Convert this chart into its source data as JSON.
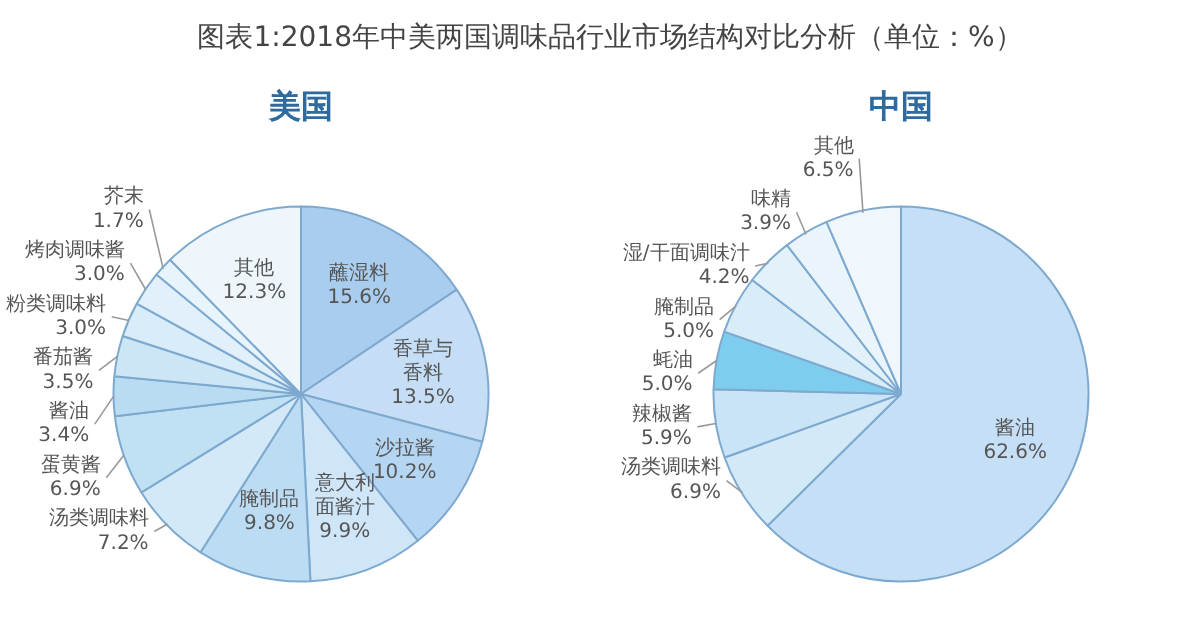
{
  "chart_data": [
    {
      "type": "pie",
      "title": "图表1:2018年中美两国调味品行业市场结构对比分析（单位：%）",
      "subtitle": "美国",
      "categories": [
        "蘸湿料",
        "香草与香料",
        "沙拉酱",
        "意大利面酱汁",
        "腌制品",
        "汤类调味料",
        "蛋黄酱",
        "酱油",
        "番茄酱",
        "粉类调味料",
        "烤肉调味酱",
        "芥末",
        "其他"
      ],
      "values": [
        15.6,
        13.5,
        10.2,
        9.9,
        9.8,
        7.2,
        6.9,
        3.4,
        3.5,
        3.0,
        3.0,
        1.7,
        12.3
      ],
      "colors": [
        "#a9cdef",
        "#c6def5",
        "#b5d6f2",
        "#cfe6f8",
        "#bcdcf4",
        "#d3e9f8",
        "#c0e0f4",
        "#b9dcf2",
        "#cde6f6",
        "#d9ecf9",
        "#e1f0fa",
        "#e8f4fb",
        "#eef6fc"
      ],
      "value_labels": [
        "15.6%",
        "13.5%",
        "10.2%",
        "9.9%",
        "9.8%",
        "7.2%",
        "6.9%",
        "3.4%",
        "3.5%",
        "3.0%",
        "3.0%",
        "1.7%",
        "12.3%"
      ]
    },
    {
      "type": "pie",
      "subtitle": "中国",
      "categories": [
        "酱油",
        "汤类调味料",
        "辣椒酱",
        "蚝油",
        "腌制品",
        "湿/干面调味汁",
        "味精",
        "其他"
      ],
      "values": [
        62.6,
        6.9,
        5.9,
        5.0,
        5.0,
        4.2,
        3.9,
        6.5
      ],
      "colors": [
        "#c5e0f6",
        "#d3e9f8",
        "#c8e4f6",
        "#7fcdee",
        "#d9edf9",
        "#e2f1fa",
        "#e9f5fb",
        "#f0f7fc"
      ],
      "value_labels": [
        "62.6%",
        "6.9%",
        "5.9%",
        "5.0%",
        "5.0%",
        "4.2%",
        "3.9%",
        "6.5%"
      ]
    }
  ]
}
